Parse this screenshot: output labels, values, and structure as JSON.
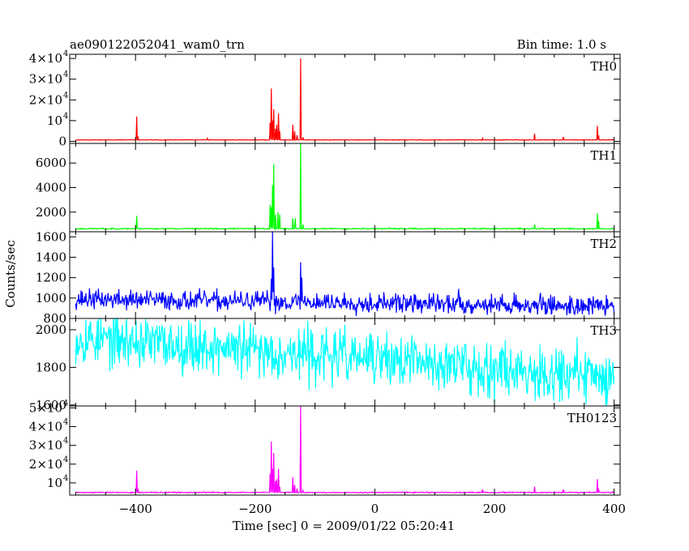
{
  "header": {
    "title": "ae090122052041_wam0_trn",
    "bin_time": "Bin time: 1.0 s"
  },
  "chart_data": {
    "type": "line",
    "xlabel": "Time [sec] 0 = 2009/01/22 05:20:41",
    "ylabel": "Counts/sec",
    "xlim": [
      -510,
      410
    ],
    "x_ticks": [
      {
        "v": -400,
        "label": "−400"
      },
      {
        "v": -200,
        "label": "−200"
      },
      {
        "v": 0,
        "label": "0"
      },
      {
        "v": 200,
        "label": "200"
      },
      {
        "v": 400,
        "label": "400"
      }
    ],
    "panels": [
      {
        "name": "TH0",
        "color": "#ff0000",
        "ylim": [
          -1000,
          42000
        ],
        "ticks": [
          {
            "v": 0,
            "label": "0"
          },
          {
            "v": 10000,
            "label": "10",
            "exp": "4"
          },
          {
            "v": 20000,
            "label": "2×10",
            "exp": "4"
          },
          {
            "v": 30000,
            "label": "3×10",
            "exp": "4"
          },
          {
            "v": 40000,
            "label": "4×10",
            "exp": "4"
          }
        ],
        "series": {
          "x_start": -500,
          "x_end": 400,
          "base": 700,
          "noise": 150,
          "trend": 0,
          "seed": 11,
          "spikes": [
            [
              -398,
              12000
            ],
            [
              -396,
              2500
            ],
            [
              -280,
              1500
            ],
            [
              -175,
              9000
            ],
            [
              -173,
              25500
            ],
            [
              -171,
              10000
            ],
            [
              -169,
              15500
            ],
            [
              -166,
              6000
            ],
            [
              -164,
              8000
            ],
            [
              -161,
              13500
            ],
            [
              -159,
              5000
            ],
            [
              -137,
              8000
            ],
            [
              -134,
              5000
            ],
            [
              -130,
              3000
            ],
            [
              -124,
              40000
            ],
            [
              -120,
              2000
            ],
            [
              180,
              1500
            ],
            [
              267,
              3700
            ],
            [
              315,
              2200
            ],
            [
              372,
              7500
            ],
            [
              374,
              3000
            ]
          ]
        }
      },
      {
        "name": "TH1",
        "color": "#00ff00",
        "ylim": [
          400,
          7600
        ],
        "ticks": [
          {
            "v": 2000,
            "label": "2000"
          },
          {
            "v": 4000,
            "label": "4000"
          },
          {
            "v": 6000,
            "label": "6000"
          }
        ],
        "series": {
          "x_start": -500,
          "x_end": 400,
          "base": 650,
          "noise": 50,
          "trend": 0,
          "seed": 23,
          "spikes": [
            [
              -398,
              1700
            ],
            [
              -175,
              2600
            ],
            [
              -173,
              2400
            ],
            [
              -171,
              4200
            ],
            [
              -169,
              5900
            ],
            [
              -166,
              1800
            ],
            [
              -162,
              2000
            ],
            [
              -159,
              1800
            ],
            [
              -137,
              1500
            ],
            [
              -133,
              1500
            ],
            [
              -124,
              7600
            ],
            [
              -120,
              1000
            ],
            [
              267,
              1000
            ],
            [
              372,
              1900
            ],
            [
              374,
              1300
            ]
          ]
        }
      },
      {
        "name": "TH2",
        "color": "#0000ff",
        "ylim": [
          800,
          1650
        ],
        "ticks": [
          {
            "v": 800,
            "label": "800"
          },
          {
            "v": 1000,
            "label": "1000"
          },
          {
            "v": 1200,
            "label": "1200"
          },
          {
            "v": 1400,
            "label": "1400"
          },
          {
            "v": 1600,
            "label": "1600"
          }
        ],
        "series": {
          "x_start": -500,
          "x_end": 400,
          "base": 990,
          "noise": 95,
          "trend": -70,
          "seed": 37,
          "spikes": [
            [
              -173,
              1190
            ],
            [
              -171,
              1660
            ],
            [
              -169,
              1300
            ],
            [
              -124,
              1350
            ],
            [
              -122,
              1200
            ],
            [
              140,
              1090
            ]
          ]
        }
      },
      {
        "name": "TH3",
        "color": "#00ffff",
        "ylim": [
          1595,
          2060
        ],
        "ticks": [
          {
            "v": 1600,
            "label": "1600"
          },
          {
            "v": 1800,
            "label": "1800"
          },
          {
            "v": 2000,
            "label": "2000"
          }
        ],
        "series": {
          "x_start": -500,
          "x_end": 400,
          "base": 1960,
          "noise": 140,
          "trend": -210,
          "seed": 53,
          "spikes": []
        }
      },
      {
        "name": "TH0123",
        "color": "#ff00ff",
        "ylim": [
          3500,
          51000
        ],
        "ticks": [
          {
            "v": 10000,
            "label": "10",
            "exp": "4"
          },
          {
            "v": 20000,
            "label": "2×10",
            "exp": "4"
          },
          {
            "v": 30000,
            "label": "3×10",
            "exp": "4"
          },
          {
            "v": 40000,
            "label": "4×10",
            "exp": "4"
          },
          {
            "v": 50000,
            "label": "5×10",
            "exp": "4"
          }
        ],
        "series": {
          "x_start": -500,
          "x_end": 400,
          "base": 4900,
          "noise": 280,
          "trend": 0,
          "seed": 71,
          "spikes": [
            [
              -398,
              16500
            ],
            [
              -396,
              7000
            ],
            [
              -175,
              15000
            ],
            [
              -173,
              32000
            ],
            [
              -171,
              17500
            ],
            [
              -169,
              26000
            ],
            [
              -166,
              11000
            ],
            [
              -164,
              12000
            ],
            [
              -161,
              17500
            ],
            [
              -159,
              8000
            ],
            [
              -137,
              13000
            ],
            [
              -134,
              9000
            ],
            [
              -130,
              7000
            ],
            [
              -124,
              51000
            ],
            [
              -120,
              6000
            ],
            [
              180,
              6500
            ],
            [
              267,
              8000
            ],
            [
              315,
              6500
            ],
            [
              372,
              12000
            ],
            [
              374,
              7000
            ]
          ]
        }
      }
    ]
  }
}
